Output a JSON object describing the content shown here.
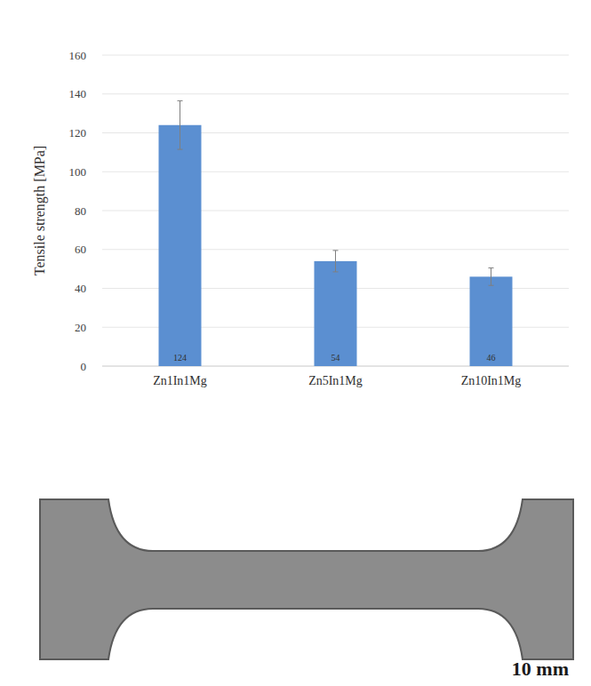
{
  "chart_data": {
    "type": "bar",
    "y_label": "Tensile strength [MPa]",
    "categories": [
      "Zn1In1Mg",
      "Zn5In1Mg",
      "Zn10In1Mg"
    ],
    "values": [
      124,
      54,
      46
    ],
    "errors": [
      12.5,
      5.5,
      4.5
    ],
    "color": "#5b8fd1",
    "ylim": [
      0,
      160
    ],
    "yticks": [
      0,
      20,
      40,
      60,
      80,
      100,
      120,
      140,
      160
    ],
    "grid": true,
    "data_labels": true
  },
  "photo": {
    "scale_bar_label": "10 mm"
  }
}
